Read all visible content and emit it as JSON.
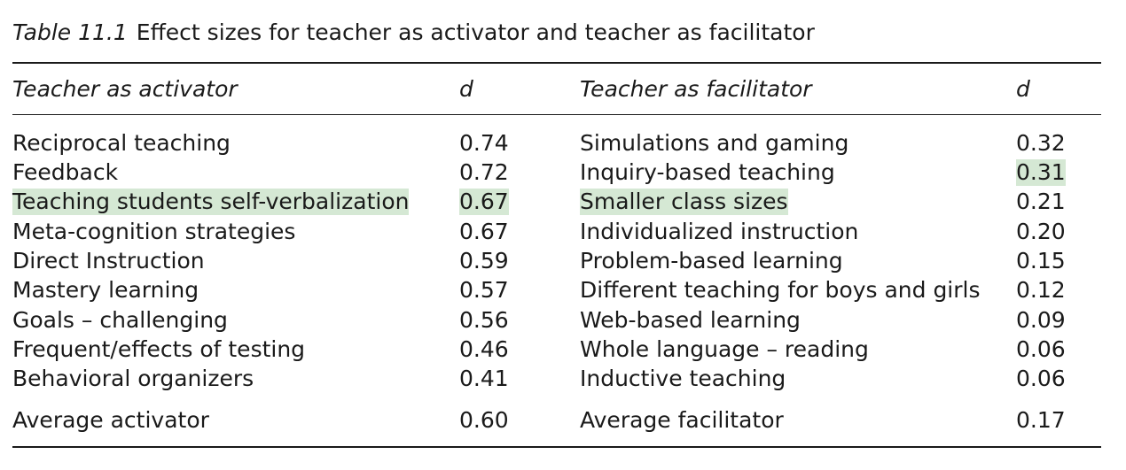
{
  "caption": {
    "label": "Table 11.1",
    "title": "Effect sizes for teacher as activator and teacher as facilitator"
  },
  "headers": {
    "activator": "Teacher as activator",
    "activator_d": "d",
    "facilitator": "Teacher as facilitator",
    "facilitator_d": "d"
  },
  "rows": [
    {
      "activator": "Reciprocal teaching",
      "activator_d": "0.74",
      "facilitator": "Simulations and gaming",
      "facilitator_d": "0.32"
    },
    {
      "activator": "Feedback",
      "activator_d": "0.72",
      "facilitator": "Inquiry-based teaching",
      "facilitator_d": "0.31"
    },
    {
      "activator": "Teaching students self-verbalization",
      "activator_d": "0.67",
      "facilitator": "Smaller class sizes",
      "facilitator_d": "0.21"
    },
    {
      "activator": "Meta-cognition strategies",
      "activator_d": "0.67",
      "facilitator": "Individualized instruction",
      "facilitator_d": "0.20"
    },
    {
      "activator": "Direct Instruction",
      "activator_d": "0.59",
      "facilitator": "Problem-based learning",
      "facilitator_d": "0.15"
    },
    {
      "activator": "Mastery learning",
      "activator_d": "0.57",
      "facilitator": "Different teaching for boys and girls",
      "facilitator_d": "0.12"
    },
    {
      "activator": "Goals – challenging",
      "activator_d": "0.56",
      "facilitator": "Web-based learning",
      "facilitator_d": "0.09"
    },
    {
      "activator": "Frequent/effects of testing",
      "activator_d": "0.46",
      "facilitator": "Whole language – reading",
      "facilitator_d": "0.06"
    },
    {
      "activator": "Behavioral organizers",
      "activator_d": "0.41",
      "facilitator": "Inductive teaching",
      "facilitator_d": "0.06"
    }
  ],
  "averages": {
    "activator": "Average activator",
    "activator_d": "0.60",
    "facilitator": "Average facilitator",
    "facilitator_d": "0.17"
  },
  "highlight_color": "#d5e8d4"
}
